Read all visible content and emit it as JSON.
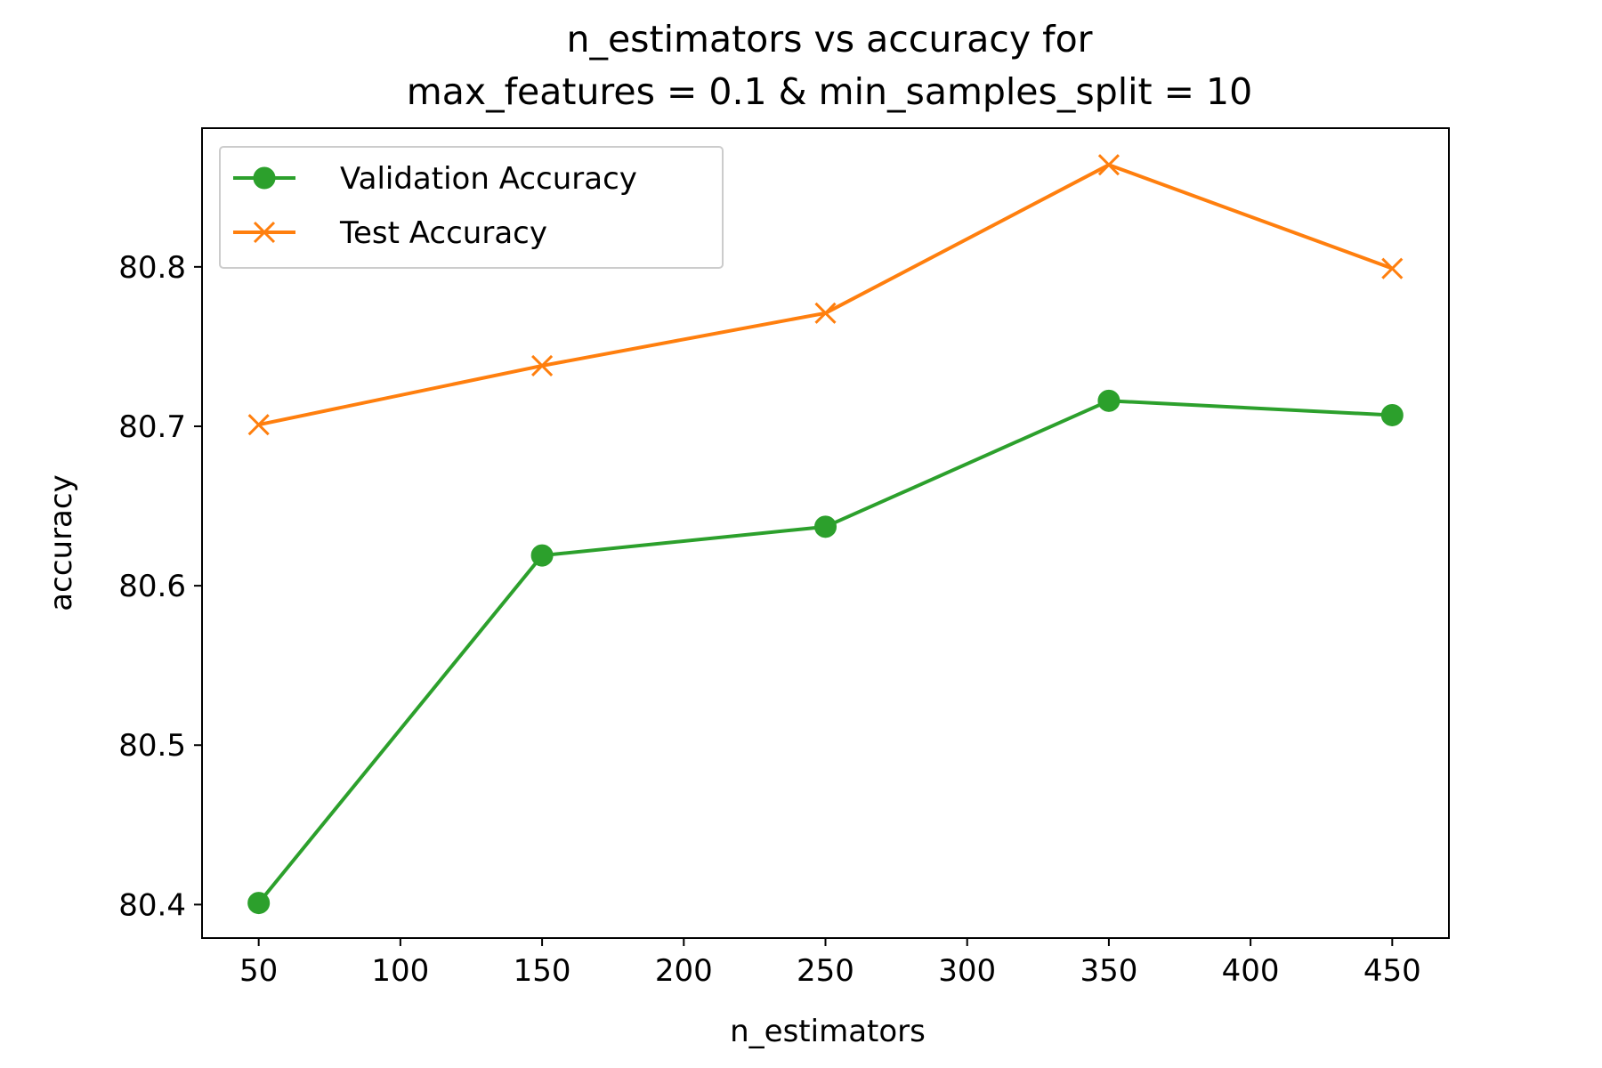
{
  "chart_data": {
    "type": "line",
    "title_lines": [
      "n_estimators vs accuracy for",
      "max_features = 0.1 & min_samples_split = 10"
    ],
    "xlabel": "n_estimators",
    "ylabel": "accuracy",
    "x": [
      50,
      150,
      250,
      350,
      450
    ],
    "xlim": [
      30,
      470
    ],
    "ylim": [
      80.379,
      80.887
    ],
    "x_ticks": [
      50,
      100,
      150,
      200,
      250,
      300,
      350,
      400,
      450
    ],
    "x_tick_labels": [
      "50",
      "100",
      "150",
      "200",
      "250",
      "300",
      "350",
      "400",
      "450"
    ],
    "y_ticks": [
      80.4,
      80.5,
      80.6,
      80.7,
      80.8
    ],
    "y_tick_labels": [
      "80.4",
      "80.5",
      "80.6",
      "80.7",
      "80.8"
    ],
    "grid": false,
    "legend_position": "upper-left",
    "series": [
      {
        "name": "Validation Accuracy",
        "marker": "circle",
        "color": "#2ca02c",
        "values": [
          80.401,
          80.619,
          80.637,
          80.716,
          80.707
        ]
      },
      {
        "name": "Test Accuracy",
        "marker": "x",
        "color": "#ff7f0e",
        "values": [
          80.701,
          80.738,
          80.771,
          80.864,
          80.799
        ]
      }
    ]
  }
}
